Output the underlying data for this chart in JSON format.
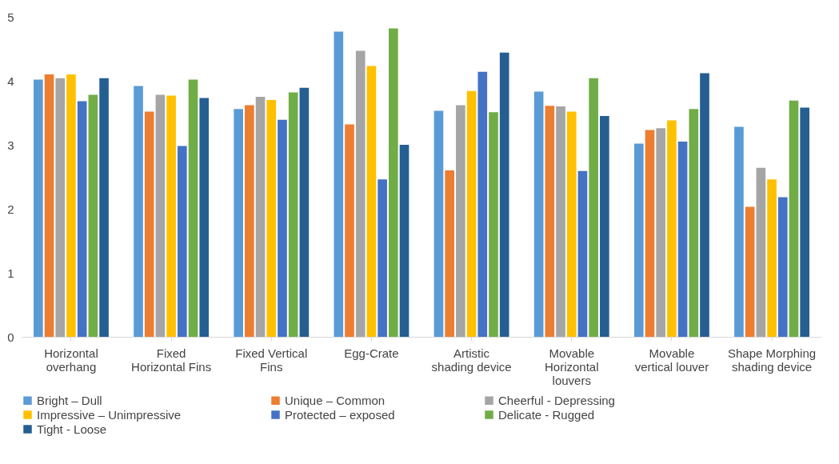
{
  "chart_data": {
    "type": "bar",
    "categories": [
      "Horizontal overhang",
      "Fixed Horizontal Fins",
      "Fixed Vertical Fins",
      "Egg-Crate",
      "Artistic shading device",
      "Movable Horizontal louvers",
      "Movable vertical louver",
      "Shape Morphing shading device"
    ],
    "series": [
      {
        "name": "Bright – Dull",
        "color": "#5b9bd5",
        "values": [
          4.02,
          3.92,
          3.56,
          4.77,
          3.53,
          3.83,
          3.02,
          3.28
        ]
      },
      {
        "name": "Unique – Common",
        "color": "#ed7d31",
        "values": [
          4.1,
          3.52,
          3.62,
          3.32,
          2.6,
          3.61,
          3.23,
          2.03
        ]
      },
      {
        "name": "Cheerful - Depressing",
        "color": "#a5a5a5",
        "values": [
          4.04,
          3.78,
          3.75,
          4.47,
          3.62,
          3.6,
          3.26,
          2.64
        ]
      },
      {
        "name": "Impressive – Unimpressive",
        "color": "#ffc000",
        "values": [
          4.1,
          3.77,
          3.7,
          4.23,
          3.84,
          3.52,
          3.38,
          2.46
        ]
      },
      {
        "name": "Protected – exposed",
        "color": "#4472c4",
        "values": [
          3.68,
          2.98,
          3.39,
          2.46,
          4.14,
          2.59,
          3.05,
          2.18
        ]
      },
      {
        "name": "Delicate - Rugged",
        "color": "#70ad47",
        "values": [
          3.78,
          4.02,
          3.82,
          4.82,
          3.51,
          4.04,
          3.56,
          3.69
        ]
      },
      {
        "name": "Tight - Loose",
        "color": "#255e91",
        "values": [
          4.04,
          3.73,
          3.89,
          3.0,
          4.44,
          3.45,
          4.12,
          3.58
        ]
      }
    ],
    "ylim": [
      0,
      5
    ],
    "yticks": [
      0,
      1,
      2,
      3,
      4,
      5
    ],
    "grid": false,
    "legend": "bottom"
  }
}
